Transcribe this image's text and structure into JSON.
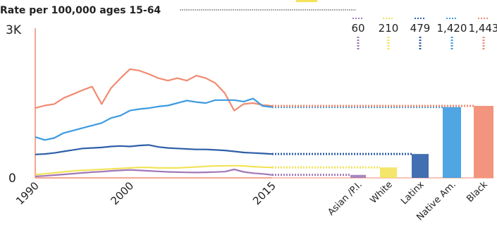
{
  "chart_data": {
    "type": "line",
    "title": "Rate per 100,000 ages 15-64",
    "y_ticks": [
      "3K",
      "0"
    ],
    "ylim": [
      0,
      3000
    ],
    "x_ticks": [
      "1990",
      "2000",
      "2015"
    ],
    "xlim": [
      1990,
      2015
    ],
    "grid": false,
    "colors": {
      "Asian /P.I.": "#a178b8",
      "White": "#f2e35a",
      "Latinx": "#2e5fa8",
      "Native Am.": "#3d9be0",
      "Black": "#f28a70"
    },
    "series": [
      {
        "name": "Black",
        "points": [
          [
            1990,
            1400
          ],
          [
            1991,
            1450
          ],
          [
            1992,
            1480
          ],
          [
            1993,
            1600
          ],
          [
            1994,
            1680
          ],
          [
            1995,
            1760
          ],
          [
            1996,
            1830
          ],
          [
            1997,
            1480
          ],
          [
            1998,
            1800
          ],
          [
            1999,
            2000
          ],
          [
            2000,
            2180
          ],
          [
            2001,
            2150
          ],
          [
            2002,
            2080
          ],
          [
            2003,
            2000
          ],
          [
            2004,
            1950
          ],
          [
            2005,
            2000
          ],
          [
            2006,
            1950
          ],
          [
            2007,
            2050
          ],
          [
            2008,
            2000
          ],
          [
            2009,
            1900
          ],
          [
            2010,
            1700
          ],
          [
            2011,
            1350
          ],
          [
            2012,
            1480
          ],
          [
            2013,
            1500
          ],
          [
            2014,
            1460
          ],
          [
            2015,
            1443
          ]
        ]
      },
      {
        "name": "Native Am.",
        "points": [
          [
            1990,
            820
          ],
          [
            1991,
            760
          ],
          [
            1992,
            800
          ],
          [
            1993,
            900
          ],
          [
            1994,
            950
          ],
          [
            1995,
            1000
          ],
          [
            1996,
            1050
          ],
          [
            1997,
            1100
          ],
          [
            1998,
            1200
          ],
          [
            1999,
            1250
          ],
          [
            2000,
            1350
          ],
          [
            2001,
            1380
          ],
          [
            2002,
            1400
          ],
          [
            2003,
            1430
          ],
          [
            2004,
            1450
          ],
          [
            2005,
            1500
          ],
          [
            2006,
            1550
          ],
          [
            2007,
            1520
          ],
          [
            2008,
            1500
          ],
          [
            2009,
            1560
          ],
          [
            2010,
            1560
          ],
          [
            2011,
            1560
          ],
          [
            2012,
            1530
          ],
          [
            2013,
            1590
          ],
          [
            2014,
            1440
          ],
          [
            2015,
            1420
          ]
        ]
      },
      {
        "name": "Latinx",
        "points": [
          [
            1990,
            470
          ],
          [
            1991,
            480
          ],
          [
            1992,
            500
          ],
          [
            1993,
            530
          ],
          [
            1994,
            560
          ],
          [
            1995,
            590
          ],
          [
            1996,
            600
          ],
          [
            1997,
            610
          ],
          [
            1998,
            630
          ],
          [
            1999,
            640
          ],
          [
            2000,
            630
          ],
          [
            2001,
            650
          ],
          [
            2002,
            660
          ],
          [
            2003,
            620
          ],
          [
            2004,
            600
          ],
          [
            2005,
            590
          ],
          [
            2006,
            580
          ],
          [
            2007,
            570
          ],
          [
            2008,
            570
          ],
          [
            2009,
            560
          ],
          [
            2010,
            550
          ],
          [
            2011,
            530
          ],
          [
            2012,
            510
          ],
          [
            2013,
            500
          ],
          [
            2014,
            490
          ],
          [
            2015,
            479
          ]
        ]
      },
      {
        "name": "White",
        "points": [
          [
            1990,
            70
          ],
          [
            1991,
            80
          ],
          [
            1992,
            100
          ],
          [
            1993,
            120
          ],
          [
            1994,
            140
          ],
          [
            1995,
            150
          ],
          [
            1996,
            160
          ],
          [
            1997,
            170
          ],
          [
            1998,
            180
          ],
          [
            1999,
            190
          ],
          [
            2000,
            200
          ],
          [
            2001,
            210
          ],
          [
            2002,
            210
          ],
          [
            2003,
            200
          ],
          [
            2004,
            200
          ],
          [
            2005,
            200
          ],
          [
            2006,
            210
          ],
          [
            2007,
            220
          ],
          [
            2008,
            230
          ],
          [
            2009,
            240
          ],
          [
            2010,
            240
          ],
          [
            2011,
            245
          ],
          [
            2012,
            240
          ],
          [
            2013,
            225
          ],
          [
            2014,
            215
          ],
          [
            2015,
            210
          ]
        ]
      },
      {
        "name": "Asian /P.I.",
        "points": [
          [
            1990,
            30
          ],
          [
            1991,
            40
          ],
          [
            1992,
            55
          ],
          [
            1993,
            70
          ],
          [
            1994,
            85
          ],
          [
            1995,
            100
          ],
          [
            1996,
            115
          ],
          [
            1997,
            125
          ],
          [
            1998,
            140
          ],
          [
            1999,
            150
          ],
          [
            2000,
            160
          ],
          [
            2001,
            150
          ],
          [
            2002,
            140
          ],
          [
            2003,
            130
          ],
          [
            2004,
            120
          ],
          [
            2005,
            115
          ],
          [
            2006,
            110
          ],
          [
            2007,
            108
          ],
          [
            2008,
            112
          ],
          [
            2009,
            118
          ],
          [
            2010,
            125
          ],
          [
            2011,
            170
          ],
          [
            2012,
            120
          ],
          [
            2013,
            95
          ],
          [
            2014,
            80
          ],
          [
            2015,
            60
          ]
        ]
      }
    ],
    "bars": {
      "type": "bar",
      "categories": [
        "Asian /P.I.",
        "White",
        "Latinx",
        "Native Am.",
        "Black"
      ],
      "values": [
        60,
        210,
        479,
        1420,
        1443
      ],
      "value_labels": [
        "60",
        "210",
        "479",
        "1,420",
        "1,443"
      ]
    }
  }
}
